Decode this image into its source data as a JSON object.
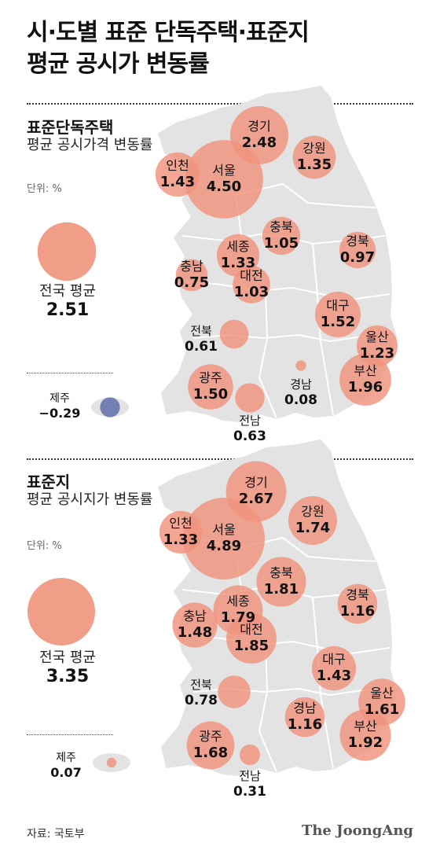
{
  "title": [
    "시·도별 표준 단독주택·표준지",
    "평균 공시가 변동률"
  ],
  "colors": {
    "bubble": "#f0937c",
    "negative": "#5b6aa8",
    "map": "#e3e3e3",
    "border": "#ffffff"
  },
  "sections": [
    {
      "title": "표준단독주택",
      "subtitle": "평균 공시가격 변동률",
      "unit": "단위: %",
      "national": {
        "label": "전국 평균",
        "value": "2.51"
      },
      "regions": [
        {
          "name": "경기",
          "value": "2.48"
        },
        {
          "name": "인천",
          "value": "1.43"
        },
        {
          "name": "서울",
          "value": "4.50"
        },
        {
          "name": "강원",
          "value": "1.35"
        },
        {
          "name": "충북",
          "value": "1.05"
        },
        {
          "name": "세종",
          "value": "1.33"
        },
        {
          "name": "충남",
          "value": "0.75"
        },
        {
          "name": "대전",
          "value": "1.03"
        },
        {
          "name": "경북",
          "value": "0.97"
        },
        {
          "name": "대구",
          "value": "1.52"
        },
        {
          "name": "울산",
          "value": "1.23"
        },
        {
          "name": "전북",
          "value": "0.61"
        },
        {
          "name": "광주",
          "value": "1.50"
        },
        {
          "name": "경남",
          "value": "0.08"
        },
        {
          "name": "부산",
          "value": "1.96"
        },
        {
          "name": "전남",
          "value": "0.63"
        },
        {
          "name": "제주",
          "value": "−0.29"
        }
      ]
    },
    {
      "title": "표준지",
      "subtitle": "평균 공시지가 변동률",
      "unit": "단위: %",
      "national": {
        "label": "전국 평균",
        "value": "3.35"
      },
      "regions": [
        {
          "name": "경기",
          "value": "2.67"
        },
        {
          "name": "인천",
          "value": "1.33"
        },
        {
          "name": "서울",
          "value": "4.89"
        },
        {
          "name": "강원",
          "value": "1.74"
        },
        {
          "name": "충북",
          "value": "1.81"
        },
        {
          "name": "세종",
          "value": "1.79"
        },
        {
          "name": "충남",
          "value": "1.48"
        },
        {
          "name": "대전",
          "value": "1.85"
        },
        {
          "name": "경북",
          "value": "1.16"
        },
        {
          "name": "대구",
          "value": "1.43"
        },
        {
          "name": "울산",
          "value": "1.61"
        },
        {
          "name": "전북",
          "value": "0.78"
        },
        {
          "name": "광주",
          "value": "1.68"
        },
        {
          "name": "경남",
          "value": "1.16"
        },
        {
          "name": "부산",
          "value": "1.92"
        },
        {
          "name": "전남",
          "value": "0.31"
        },
        {
          "name": "제주",
          "value": "0.07"
        }
      ]
    }
  ],
  "source": "자료: 국토부",
  "credit": "The JoongAng"
}
